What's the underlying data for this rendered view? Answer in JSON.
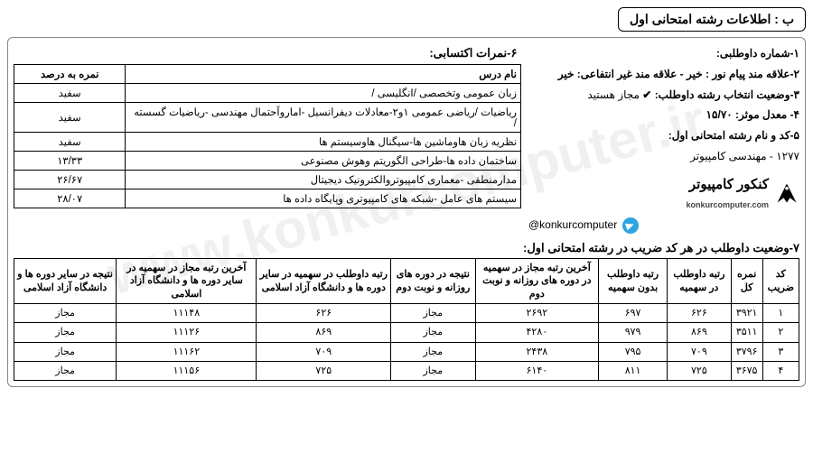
{
  "watermark": "www.konkurcomputer.ir",
  "title": "ب : اطلاعات رشته امتحانی اول",
  "info": {
    "line1_label": "۱-شماره داوطلبی:",
    "line2": "۲-علاقه مند پیام نور : خیر - علاقه مند غیر انتفاعی: خیر",
    "line3_label": "۳-وضعیت انتخاب رشته داوطلب:",
    "line3_check": "✔",
    "line3_value": "مجاز هستید",
    "line4": "۴- معدل موثر: ۱۵/۷۰",
    "line5_label": "۵-کد و نام رشته امتحانی اول:",
    "line5_value": "۱۲۷۷ - مهندسی کامپیوتر"
  },
  "brand": {
    "name": "کنکور کامپیوتر",
    "sub": "konkurcomputer.com",
    "telegram": "@konkurcomputer"
  },
  "scores": {
    "heading": "۶-نمرات اکتسابی:",
    "col_name": "نام درس",
    "col_pct": "نمره به درصد",
    "rows": [
      {
        "name": "زبان عمومی وتخصصی /انگلیسی /",
        "pct": "سفید"
      },
      {
        "name": "ریاضیات /ریاضی عمومی ۱و۲-معادلات دیفرانسیل -اماروآحتمال مهندسی -ریاضیات گسسته /",
        "pct": "سفید"
      },
      {
        "name": "نظریه زبان هاوماشین ها-سیگنال هاوسیستم ها",
        "pct": "سفید"
      },
      {
        "name": "ساختمان داده ها-طراحی الگوریتم وهوش مصنوعی",
        "pct": "۱۳/۳۳"
      },
      {
        "name": "مدارمنطقی -معماری کامپیوتروالکترونیک دیجیتال",
        "pct": "۲۶/۶۷"
      },
      {
        "name": "سیستم های عامل -شبکه های کامپیوتری وپایگاه داده ها",
        "pct": "۲۸/۰۷"
      }
    ]
  },
  "status": {
    "heading": "۷-وضعیت داوطلب در هر کد ضریب در رشته امتحانی اول:",
    "cols": [
      "کد ضریب",
      "نمره کل",
      "رتبه داوطلب در سهمیه",
      "رتبه داوطلب بدون سهمیه",
      "آخرین رتبه مجاز در سهمیه در دوره های روزانه و نوبت دوم",
      "نتیجه در دوره های روزانه و نوبت دوم",
      "رتبه داوطلب در سهمیه در سایر دوره ها و دانشگاه آزاد اسلامی",
      "آخرین رتبه مجاز در سهمیه در سایر دوره ها و دانشگاه آزاد اسلامی",
      "نتیجه در سایر دوره ها و دانشگاه آزاد اسلامی"
    ],
    "rows": [
      [
        "۱",
        "۳۹۲۱",
        "۶۲۶",
        "۶۹۷",
        "۲۶۹۲",
        "مجاز",
        "۶۲۶",
        "۱۱۱۴۸",
        "مجاز"
      ],
      [
        "۲",
        "۳۵۱۱",
        "۸۶۹",
        "۹۷۹",
        "۴۲۸۰",
        "مجاز",
        "۸۶۹",
        "۱۱۱۲۶",
        "مجاز"
      ],
      [
        "۳",
        "۳۷۹۶",
        "۷۰۹",
        "۷۹۵",
        "۲۴۳۸",
        "مجاز",
        "۷۰۹",
        "۱۱۱۶۲",
        "مجاز"
      ],
      [
        "۴",
        "۳۶۷۵",
        "۷۲۵",
        "۸۱۱",
        "۶۱۴۰",
        "مجاز",
        "۷۲۵",
        "۱۱۱۵۶",
        "مجاز"
      ]
    ]
  }
}
